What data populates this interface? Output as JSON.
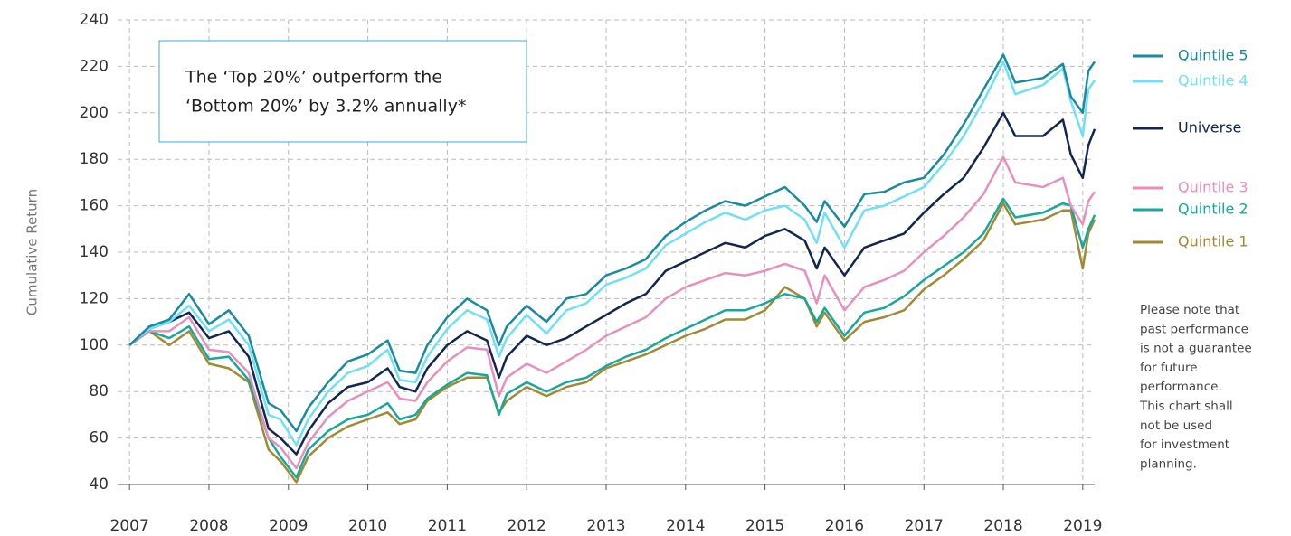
{
  "chart_data": {
    "type": "line",
    "y_label": "Cumulative Return",
    "annotation": [
      "The ‘Top 20%’ outperform the",
      "‘Bottom 20%’ by 3.2% annually*"
    ],
    "note": [
      "Please note that",
      "past performance",
      "is not a guarantee",
      "for future",
      "performance.",
      "This chart shall",
      "not be used",
      "for investment",
      "planning."
    ],
    "x": [
      2007,
      2007.25,
      2007.5,
      2007.75,
      2008,
      2008.25,
      2008.5,
      2008.75,
      2008.9,
      2009.1,
      2009.25,
      2009.5,
      2009.75,
      2010,
      2010.25,
      2010.4,
      2010.6,
      2010.75,
      2011,
      2011.25,
      2011.5,
      2011.65,
      2011.75,
      2012,
      2012.25,
      2012.5,
      2012.75,
      2013,
      2013.25,
      2013.5,
      2013.75,
      2014,
      2014.25,
      2014.5,
      2014.75,
      2015,
      2015.25,
      2015.5,
      2015.65,
      2015.75,
      2016,
      2016.25,
      2016.5,
      2016.75,
      2017,
      2017.25,
      2017.5,
      2017.75,
      2018,
      2018.15,
      2018.5,
      2018.75,
      2018.85,
      2019,
      2019.07,
      2019.15
    ],
    "series": [
      {
        "name": "Quintile 5",
        "color": "#1a8a9e",
        "values": [
          100,
          108,
          111,
          122,
          109,
          115,
          104,
          75,
          72,
          63,
          73,
          84,
          93,
          96,
          102,
          89,
          88,
          100,
          112,
          120,
          115,
          100,
          108,
          117,
          110,
          120,
          122,
          130,
          133,
          137,
          147,
          153,
          158,
          162,
          160,
          164,
          168,
          160,
          153,
          162,
          151,
          165,
          166,
          170,
          172,
          182,
          195,
          210,
          225,
          213,
          215,
          221,
          207,
          200,
          218,
          222
        ]
      },
      {
        "name": "Quintile 4",
        "color": "#6fe0f5",
        "values": [
          100,
          107,
          110,
          117,
          106,
          111,
          100,
          70,
          68,
          57,
          68,
          80,
          88,
          91,
          98,
          85,
          84,
          95,
          107,
          115,
          111,
          95,
          103,
          113,
          105,
          115,
          118,
          126,
          129,
          133,
          143,
          148,
          153,
          157,
          154,
          158,
          160,
          154,
          144,
          157,
          142,
          158,
          160,
          164,
          168,
          178,
          190,
          205,
          222,
          208,
          212,
          219,
          205,
          190,
          210,
          214
        ]
      },
      {
        "name": "Universe",
        "color": "#12264f",
        "values": [
          100,
          107,
          110,
          114,
          103,
          106,
          95,
          64,
          60,
          53,
          63,
          75,
          82,
          84,
          90,
          82,
          80,
          90,
          100,
          106,
          102,
          86,
          95,
          104,
          100,
          103,
          108,
          113,
          118,
          122,
          132,
          136,
          140,
          144,
          142,
          147,
          150,
          145,
          133,
          142,
          130,
          142,
          145,
          148,
          157,
          165,
          172,
          185,
          200,
          190,
          190,
          197,
          182,
          172,
          186,
          193
        ]
      },
      {
        "name": "Quintile 3",
        "color": "#e78fbd",
        "values": [
          100,
          106,
          106,
          112,
          98,
          97,
          88,
          60,
          56,
          47,
          58,
          69,
          76,
          80,
          84,
          77,
          76,
          84,
          93,
          99,
          98,
          78,
          86,
          92,
          88,
          93,
          98,
          104,
          108,
          112,
          120,
          125,
          128,
          131,
          130,
          132,
          135,
          132,
          118,
          130,
          115,
          125,
          128,
          132,
          140,
          147,
          155,
          165,
          181,
          170,
          168,
          172,
          160,
          152,
          162,
          166
        ]
      },
      {
        "name": "Quintile 2",
        "color": "#17a89a",
        "values": [
          100,
          106,
          103,
          108,
          94,
          95,
          85,
          60,
          52,
          43,
          55,
          63,
          68,
          70,
          75,
          68,
          70,
          77,
          83,
          88,
          87,
          70,
          79,
          84,
          80,
          84,
          86,
          91,
          95,
          98,
          103,
          107,
          111,
          115,
          115,
          118,
          122,
          120,
          110,
          116,
          104,
          114,
          116,
          121,
          128,
          134,
          140,
          148,
          163,
          155,
          157,
          161,
          160,
          142,
          150,
          156
        ]
      },
      {
        "name": "Quintile 1",
        "color": "#a28a35",
        "values": [
          100,
          106,
          100,
          106,
          92,
          90,
          84,
          55,
          50,
          41,
          52,
          60,
          65,
          68,
          71,
          66,
          68,
          76,
          82,
          86,
          86,
          71,
          76,
          82,
          78,
          82,
          84,
          90,
          93,
          96,
          100,
          104,
          107,
          111,
          111,
          115,
          125,
          120,
          108,
          114,
          102,
          110,
          112,
          115,
          124,
          130,
          137,
          145,
          161,
          152,
          154,
          158,
          158,
          133,
          148,
          154
        ]
      }
    ],
    "xlim": [
      2006.85,
      2019.15
    ],
    "xticks": [
      2007,
      2008,
      2009,
      2010,
      2011,
      2012,
      2013,
      2014,
      2015,
      2016,
      2017,
      2018,
      2019
    ],
    "ylim": [
      40,
      240
    ],
    "yticks": [
      40,
      60,
      80,
      100,
      120,
      140,
      160,
      180,
      200,
      220,
      240
    ],
    "grid": true
  }
}
